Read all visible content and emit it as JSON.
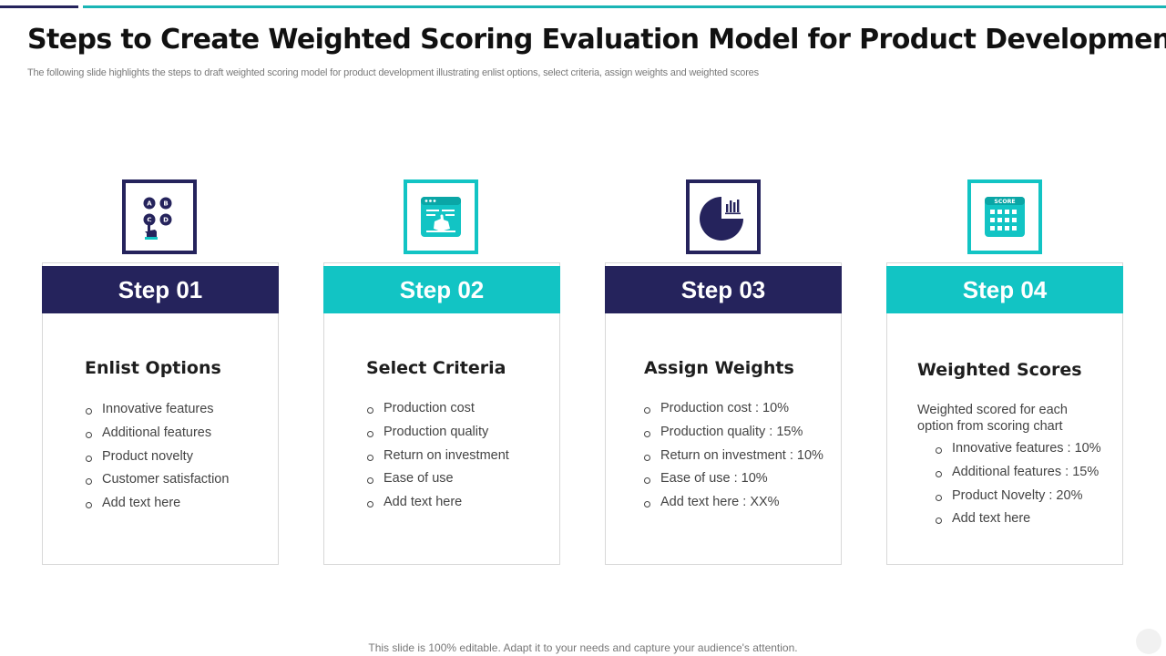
{
  "slide": {
    "title": "Steps to Create Weighted Scoring Evaluation Model for Product Development",
    "subtitle": "The following slide highlights the steps to draft weighted scoring model for product development illustrating enlist options, select criteria, assign weights and weighted scores",
    "footer": "This slide is 100% editable. Adapt it to your needs and capture your audience's attention."
  },
  "colors": {
    "dark": "#25235c",
    "teal": "#12c4c4"
  },
  "steps": [
    {
      "label": "Step 01",
      "title": "Enlist Options",
      "icon": "abcd-options-hand-icon",
      "items": [
        "Innovative features",
        "Additional features",
        "Product novelty",
        "Customer satisfaction",
        "Add text here"
      ]
    },
    {
      "label": "Step 02",
      "title": "Select Criteria",
      "icon": "browser-click-icon",
      "items": [
        "Production cost",
        "Production quality",
        "Return on investment",
        "Ease of use",
        "Add text here"
      ]
    },
    {
      "label": "Step 03",
      "title": "Assign Weights",
      "icon": "pie-chart-icon",
      "items": [
        "Production cost : 10%",
        "Production quality  : 15%",
        "Return on investment : 10%",
        "Ease of use : 10%",
        "Add text here : XX%"
      ]
    },
    {
      "label": "Step 04",
      "title": "Weighted Scores",
      "icon": "score-calendar-icon",
      "icon_text": "SCORE",
      "description": "Weighted scored for each option from  scoring chart",
      "items": [
        "Innovative features : 10%",
        "Additional features : 15%",
        "Product Novelty  : 20%",
        "Add text here"
      ]
    }
  ]
}
